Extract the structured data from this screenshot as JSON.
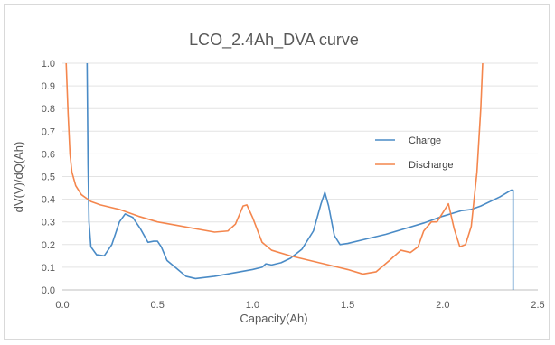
{
  "chart_data": {
    "type": "line",
    "title": "LCO_2.4Ah_DVA curve",
    "xlabel": "Capacity(Ah)",
    "ylabel": "dV(V)/dQ(Ah)",
    "xlim": [
      0,
      2.5
    ],
    "ylim": [
      0,
      1.0
    ],
    "x_ticks": [
      "0.0",
      "0.5",
      "1.0",
      "1.5",
      "2.0",
      "2.5"
    ],
    "y_ticks": [
      "0.0",
      "0.1",
      "0.2",
      "0.3",
      "0.4",
      "0.5",
      "0.6",
      "0.7",
      "0.8",
      "0.9",
      "1.0"
    ],
    "grid": "horizontal",
    "legend_position": "right",
    "series": [
      {
        "name": "Charge",
        "color": "#4a8bc6",
        "points": [
          [
            0.13,
            1.0
          ],
          [
            0.135,
            0.55
          ],
          [
            0.14,
            0.3
          ],
          [
            0.15,
            0.19
          ],
          [
            0.18,
            0.155
          ],
          [
            0.22,
            0.15
          ],
          [
            0.26,
            0.2
          ],
          [
            0.3,
            0.3
          ],
          [
            0.33,
            0.335
          ],
          [
            0.37,
            0.32
          ],
          [
            0.41,
            0.27
          ],
          [
            0.45,
            0.21
          ],
          [
            0.48,
            0.215
          ],
          [
            0.5,
            0.215
          ],
          [
            0.52,
            0.19
          ],
          [
            0.55,
            0.13
          ],
          [
            0.6,
            0.095
          ],
          [
            0.65,
            0.06
          ],
          [
            0.7,
            0.05
          ],
          [
            0.8,
            0.06
          ],
          [
            0.9,
            0.075
          ],
          [
            1.0,
            0.09
          ],
          [
            1.05,
            0.1
          ],
          [
            1.07,
            0.115
          ],
          [
            1.1,
            0.11
          ],
          [
            1.15,
            0.12
          ],
          [
            1.2,
            0.14
          ],
          [
            1.26,
            0.18
          ],
          [
            1.32,
            0.26
          ],
          [
            1.36,
            0.38
          ],
          [
            1.38,
            0.43
          ],
          [
            1.4,
            0.37
          ],
          [
            1.43,
            0.24
          ],
          [
            1.46,
            0.2
          ],
          [
            1.5,
            0.205
          ],
          [
            1.6,
            0.225
          ],
          [
            1.7,
            0.245
          ],
          [
            1.8,
            0.27
          ],
          [
            1.9,
            0.295
          ],
          [
            2.0,
            0.325
          ],
          [
            2.1,
            0.35
          ],
          [
            2.15,
            0.355
          ],
          [
            2.2,
            0.37
          ],
          [
            2.3,
            0.41
          ],
          [
            2.36,
            0.44
          ],
          [
            2.37,
            0.44
          ],
          [
            2.37,
            0.0
          ]
        ]
      },
      {
        "name": "Discharge",
        "color": "#f4864d",
        "points": [
          [
            0.02,
            1.0
          ],
          [
            0.03,
            0.78
          ],
          [
            0.04,
            0.6
          ],
          [
            0.05,
            0.52
          ],
          [
            0.07,
            0.46
          ],
          [
            0.1,
            0.42
          ],
          [
            0.15,
            0.39
          ],
          [
            0.2,
            0.375
          ],
          [
            0.3,
            0.355
          ],
          [
            0.4,
            0.325
          ],
          [
            0.5,
            0.3
          ],
          [
            0.6,
            0.285
          ],
          [
            0.7,
            0.27
          ],
          [
            0.8,
            0.255
          ],
          [
            0.87,
            0.26
          ],
          [
            0.91,
            0.29
          ],
          [
            0.95,
            0.37
          ],
          [
            0.97,
            0.375
          ],
          [
            1.0,
            0.32
          ],
          [
            1.05,
            0.21
          ],
          [
            1.1,
            0.175
          ],
          [
            1.2,
            0.15
          ],
          [
            1.3,
            0.13
          ],
          [
            1.4,
            0.11
          ],
          [
            1.5,
            0.09
          ],
          [
            1.58,
            0.07
          ],
          [
            1.65,
            0.08
          ],
          [
            1.72,
            0.13
          ],
          [
            1.78,
            0.175
          ],
          [
            1.83,
            0.165
          ],
          [
            1.87,
            0.19
          ],
          [
            1.9,
            0.26
          ],
          [
            1.94,
            0.3
          ],
          [
            1.97,
            0.3
          ],
          [
            2.0,
            0.34
          ],
          [
            2.03,
            0.38
          ],
          [
            2.06,
            0.27
          ],
          [
            2.09,
            0.19
          ],
          [
            2.12,
            0.2
          ],
          [
            2.15,
            0.28
          ],
          [
            2.18,
            0.52
          ],
          [
            2.2,
            0.8
          ],
          [
            2.21,
            1.0
          ]
        ]
      }
    ]
  }
}
